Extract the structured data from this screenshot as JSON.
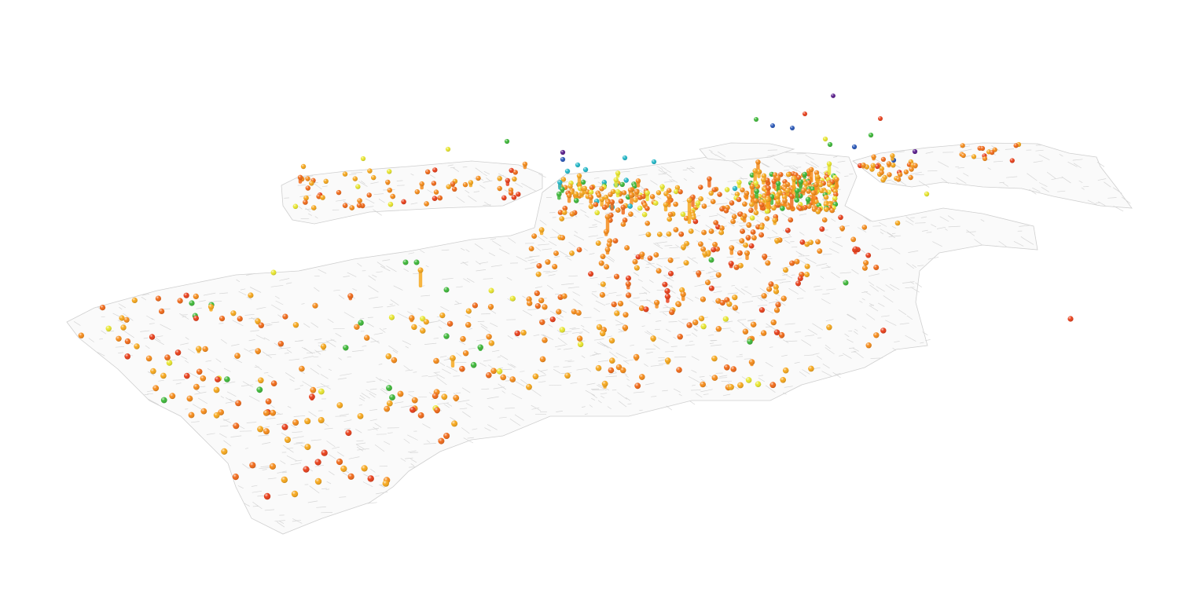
{
  "map": {
    "view": "3d-perspective",
    "basemap": "gray-street-grid",
    "background_color": "#ffffff",
    "land_color": "#fafafa",
    "street_color": "#d6d6d6"
  },
  "legend_colors": {
    "red": "#e8401c",
    "orange_red": "#f06a1a",
    "orange": "#f58c1c",
    "amber": "#f6a81e",
    "yellow": "#e8e630",
    "green": "#3fb83a",
    "teal": "#25b8c8",
    "blue": "#2a58b8",
    "purple": "#5a1e8c"
  },
  "marker_style": "sphere-on-stalk"
}
